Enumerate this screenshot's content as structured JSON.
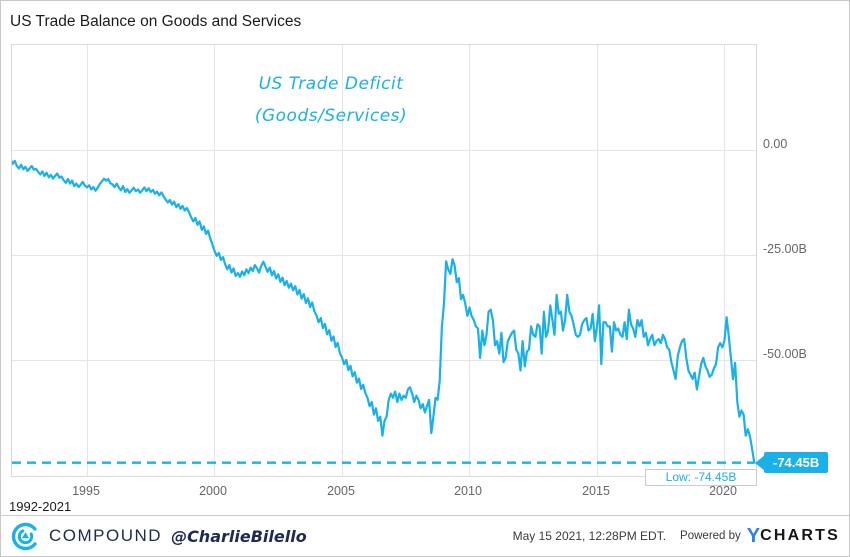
{
  "colors": {
    "line": "#1ab0e8",
    "badge_bg": "#1ab0e8",
    "badge_text": "#ffffff",
    "brand_navy": "#1d2b50",
    "ycharts_blue": "#2d7ff0",
    "grid": "#e5e5e5",
    "tick_text": "#666666"
  },
  "footer": {
    "brand": "COMPOUND",
    "handle": "@CharlieBilello",
    "timestamp": "May 15 2021, 12:28PM EDT.",
    "powered_by": "Powered by",
    "ycharts_y": "Y",
    "ycharts_rest": "CHARTS",
    "compound_logo": "compound-c-spiral-logo"
  },
  "chart_data": {
    "type": "line",
    "title": "US Trade Balance on Goods and Services",
    "annotation_lines": [
      "US Trade Deficit",
      "(Goods/Services)"
    ],
    "range_label": "1992-2021",
    "unit": "USD billions, monthly",
    "start_year": 1992,
    "frequency": "monthly",
    "end_period": "2021-03",
    "x_tick_labels": [
      "1995",
      "2000",
      "2005",
      "2010",
      "2015",
      "2020"
    ],
    "x_ticks": [
      1995,
      2000,
      2005,
      2010,
      2015,
      2020
    ],
    "y_tick_labels": [
      "0.00",
      "-25.00B",
      "-50.00B"
    ],
    "y_ticks": [
      0,
      -25,
      -50
    ],
    "ylim": [
      -78.5,
      25
    ],
    "grid": true,
    "legend": "none",
    "low_value": -74.45,
    "low_label": "Low: -74.45B",
    "low_badge": "-74.45B",
    "values": [
      -2.0,
      -3.3,
      -2.6,
      -3.8,
      -4.4,
      -3.5,
      -4.6,
      -4.0,
      -5.0,
      -4.4,
      -3.8,
      -4.7,
      -4.5,
      -5.2,
      -5.8,
      -5.1,
      -6.2,
      -5.4,
      -6.5,
      -5.9,
      -6.8,
      -6.2,
      -5.6,
      -6.6,
      -6.3,
      -7.2,
      -7.8,
      -6.9,
      -8.0,
      -7.3,
      -8.6,
      -8.0,
      -8.8,
      -8.3,
      -7.6,
      -8.5,
      -8.9,
      -8.4,
      -9.4,
      -8.8,
      -9.7,
      -9.0,
      -8.1,
      -7.5,
      -6.8,
      -7.3,
      -6.9,
      -7.9,
      -8.2,
      -8.8,
      -8.0,
      -9.0,
      -9.6,
      -8.6,
      -10.0,
      -9.3,
      -10.2,
      -9.6,
      -9.0,
      -9.8,
      -9.4,
      -10.2,
      -9.6,
      -8.9,
      -9.8,
      -9.1,
      -10.0,
      -9.5,
      -10.4,
      -9.9,
      -10.8,
      -10.1,
      -11.0,
      -11.8,
      -12.5,
      -11.9,
      -13.0,
      -12.3,
      -13.6,
      -12.9,
      -14.0,
      -13.3,
      -14.4,
      -13.8,
      -14.8,
      -16.0,
      -17.0,
      -16.2,
      -17.8,
      -17.0,
      -19.0,
      -18.2,
      -20.0,
      -19.2,
      -21.0,
      -22.5,
      -24.0,
      -25.2,
      -24.5,
      -26.2,
      -25.5,
      -27.2,
      -28.4,
      -27.4,
      -29.2,
      -28.2,
      -30.0,
      -29.3,
      -30.2,
      -28.9,
      -29.8,
      -28.4,
      -29.3,
      -28.0,
      -28.8,
      -27.4,
      -28.2,
      -29.2,
      -27.6,
      -26.6,
      -27.8,
      -29.0,
      -28.0,
      -29.8,
      -28.8,
      -30.6,
      -29.6,
      -31.4,
      -30.4,
      -32.2,
      -31.2,
      -32.8,
      -31.8,
      -33.4,
      -32.4,
      -34.4,
      -33.3,
      -35.4,
      -34.3,
      -36.4,
      -35.3,
      -37.4,
      -36.3,
      -38.4,
      -39.4,
      -41.0,
      -40.0,
      -42.4,
      -41.4,
      -43.9,
      -42.9,
      -45.4,
      -44.4,
      -46.9,
      -45.9,
      -48.4,
      -49.4,
      -51.0,
      -50.0,
      -52.4,
      -51.4,
      -53.9,
      -52.9,
      -55.4,
      -54.4,
      -56.9,
      -55.9,
      -57.9,
      -59.0,
      -61.0,
      -60.0,
      -63.0,
      -61.5,
      -64.5,
      -63.5,
      -68.0,
      -64.5,
      -63.5,
      -59.5,
      -58.0,
      -59.0,
      -57.5,
      -60.0,
      -58.0,
      -59.5,
      -58.5,
      -59.0,
      -57.0,
      -56.5,
      -58.0,
      -60.0,
      -58.5,
      -59.5,
      -61.5,
      -60.5,
      -62.5,
      -61.0,
      -59.5,
      -67.4,
      -63.5,
      -59.0,
      -59.5,
      -55.0,
      -42.0,
      -36.5,
      -26.5,
      -28.5,
      -29.5,
      -26.0,
      -27.5,
      -31.5,
      -30.5,
      -35.5,
      -34.5,
      -36.5,
      -39.5,
      -37.5,
      -39.5,
      -40.5,
      -42.0,
      -42.5,
      -49.5,
      -43.0,
      -46.5,
      -44.0,
      -38.5,
      -38.0,
      -40.5,
      -46.5,
      -45.5,
      -48.5,
      -43.5,
      -50.5,
      -49.5,
      -45.5,
      -44.5,
      -43.5,
      -43.0,
      -47.5,
      -48.5,
      -52.5,
      -45.5,
      -51.5,
      -48.0,
      -47.5,
      -42.0,
      -44.0,
      -44.5,
      -41.5,
      -42.0,
      -48.5,
      -38.5,
      -44.5,
      -43.0,
      -37.0,
      -40.5,
      -44.0,
      -34.5,
      -39.0,
      -38.5,
      -43.0,
      -40.5,
      -34.5,
      -38.5,
      -39.5,
      -41.5,
      -44.0,
      -44.5,
      -44.0,
      -41.5,
      -40.5,
      -40.0,
      -43.0,
      -42.5,
      -39.0,
      -45.5,
      -42.0,
      -37.0,
      -51.0,
      -41.0,
      -41.0,
      -42.0,
      -42.0,
      -48.0,
      -41.0,
      -43.0,
      -42.5,
      -44.0,
      -44.5,
      -41.0,
      -45.0,
      -38.0,
      -41.5,
      -42.5,
      -44.5,
      -40.5,
      -42.0,
      -40.5,
      -44.5,
      -43.5,
      -46.5,
      -45.0,
      -44.0,
      -46.5,
      -45.5,
      -45.0,
      -46.0,
      -44.0,
      -45.0,
      -47.0,
      -47.5,
      -50.5,
      -52.5,
      -54.5,
      -49.0,
      -47.0,
      -45.5,
      -45.0,
      -49.5,
      -52.5,
      -53.5,
      -54.5,
      -53.0,
      -57.0,
      -54.0,
      -51.0,
      -49.5,
      -51.5,
      -52.5,
      -54.0,
      -53.5,
      -52.0,
      -51.0,
      -47.0,
      -46.0,
      -47.0,
      -45.3,
      -39.8,
      -44.4,
      -49.4,
      -54.6,
      -50.7,
      -60.0,
      -63.5,
      -62.0,
      -63.0,
      -68.0,
      -66.5,
      -68.2,
      -71.2,
      -74.45
    ]
  }
}
